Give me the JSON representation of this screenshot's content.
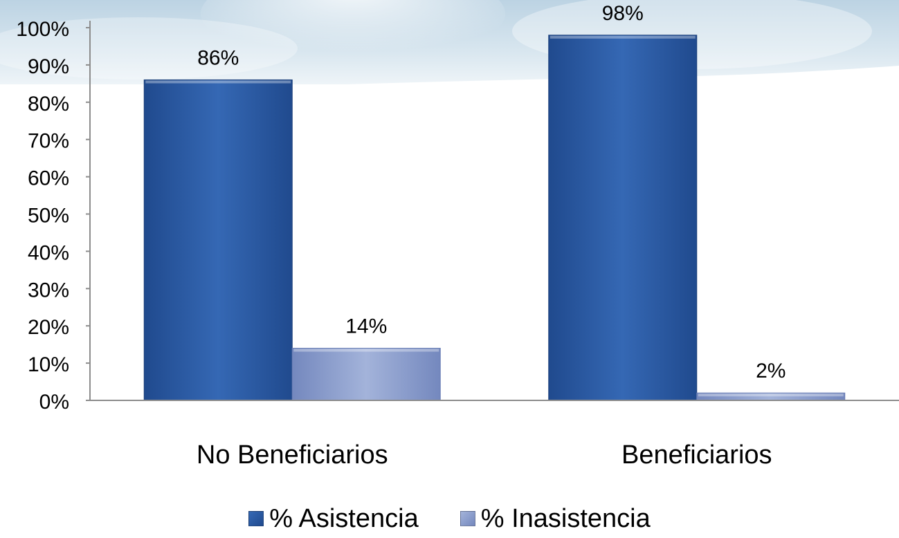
{
  "chart_data": {
    "type": "bar",
    "categories": [
      "No Beneficiarios",
      "Beneficiarios"
    ],
    "series": [
      {
        "name": "% Asistencia",
        "values": [
          86,
          98
        ],
        "labels": [
          "86%",
          "98%"
        ],
        "color": "#2f5fa8"
      },
      {
        "name": "% Inasistencia",
        "values": [
          14,
          2
        ],
        "labels": [
          "14%",
          "2%"
        ],
        "color": "#8fa1cf"
      }
    ],
    "ylim": [
      0,
      100
    ],
    "y_ticks": [
      "0%",
      "10%",
      "20%",
      "30%",
      "40%",
      "50%",
      "60%",
      "70%",
      "80%",
      "90%",
      "100%"
    ],
    "grid": false,
    "legend": "bottom"
  },
  "legend": {
    "items": [
      {
        "label": "% Asistencia",
        "color": "#2f5fa8"
      },
      {
        "label": "% Inasistencia",
        "color": "#8fa1cf"
      }
    ]
  }
}
